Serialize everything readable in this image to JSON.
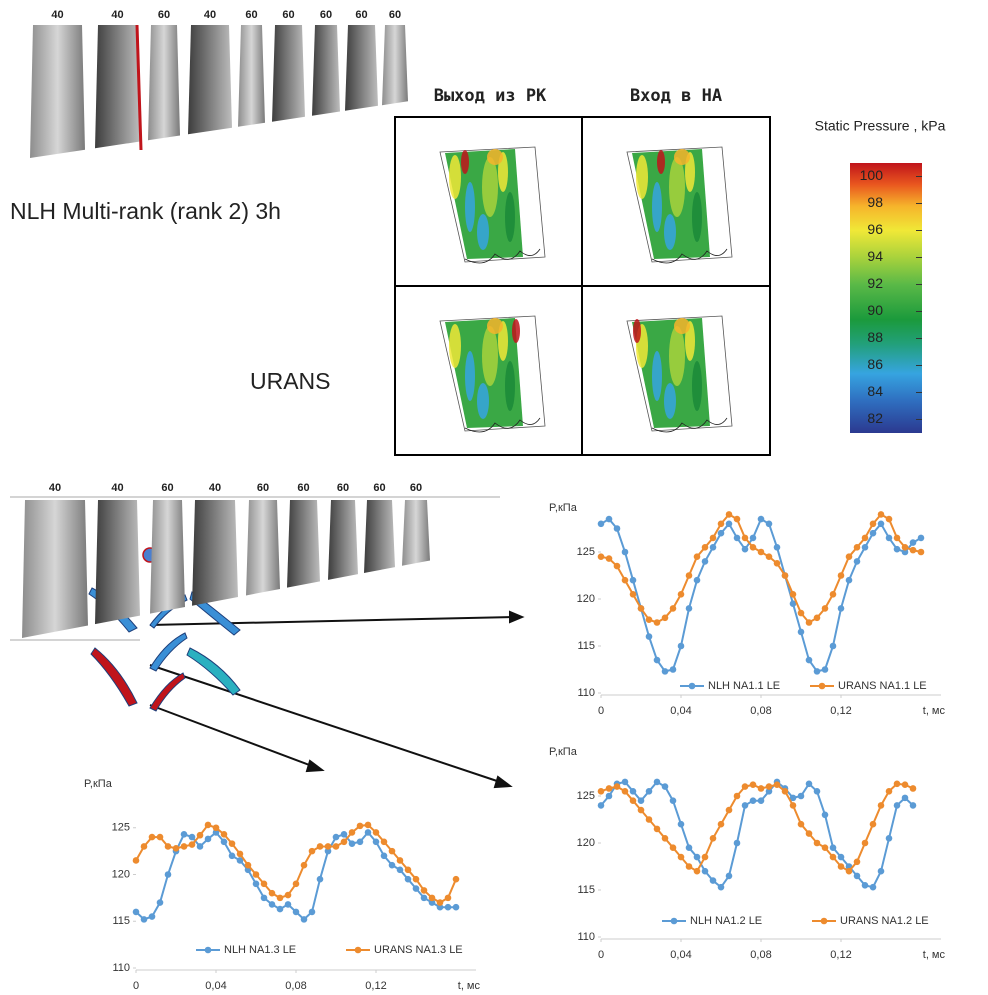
{
  "blades_top": {
    "labels": [
      "40",
      "40",
      "60",
      "40",
      "60",
      "60",
      "60",
      "60",
      "60"
    ]
  },
  "blades_bottom": {
    "labels": [
      "40",
      "40",
      "60",
      "40",
      "60",
      "60",
      "60",
      "60",
      "60"
    ]
  },
  "contours": {
    "column_titles": [
      "Выход из РК",
      "Вход в НА"
    ],
    "row_titles": [
      "NLH Multi-rank (rank 2) 3h",
      "URANS"
    ]
  },
  "colorbar": {
    "title": "Static Pressure , kPa",
    "range": [
      81,
      101
    ],
    "ticks": [
      82,
      84,
      86,
      88,
      90,
      92,
      94,
      96,
      98,
      100
    ]
  },
  "chart_data": [
    {
      "type": "line",
      "y_label": "P,кПа",
      "x_label": "t, мс",
      "legend": "bottom",
      "grid": false,
      "xlim": [
        0,
        0.17
      ],
      "ylim": [
        110,
        130
      ],
      "xticks": [
        0,
        {
          "value": 0.04,
          "label": "0,04"
        },
        {
          "value": 0.08,
          "label": "0,08"
        },
        {
          "value": 0.12,
          "label": "0,12"
        }
      ],
      "yticks": [
        110,
        115,
        120,
        125
      ],
      "x": [
        0,
        0.004,
        0.008,
        0.012,
        0.016,
        0.02,
        0.024,
        0.028,
        0.032,
        0.036,
        0.04,
        0.044,
        0.048,
        0.052,
        0.056,
        0.06,
        0.064,
        0.068,
        0.072,
        0.076,
        0.08,
        0.084,
        0.088,
        0.092,
        0.096,
        0.1,
        0.104,
        0.108,
        0.112,
        0.116,
        0.12,
        0.124,
        0.128,
        0.132,
        0.136,
        0.14,
        0.144,
        0.148,
        0.152,
        0.156,
        0.16
      ],
      "series": [
        {
          "name": "NLH NA1.1 LE",
          "color": "#5b9bd5",
          "values": [
            128,
            128.5,
            127.5,
            125,
            122,
            119,
            116,
            113.5,
            112.3,
            112.5,
            115,
            119,
            122,
            124,
            125.5,
            127,
            128,
            126.5,
            125.3,
            126.5,
            128.5,
            128,
            125.5,
            122.5,
            119.5,
            116.5,
            113.5,
            112.3,
            112.5,
            115,
            119,
            122,
            124,
            125.5,
            127,
            128,
            126.5,
            125.3,
            125,
            126,
            126.5
          ]
        },
        {
          "name": "URANS NA1.1 LE",
          "color": "#ed8b2e",
          "values": [
            124.5,
            124.3,
            123.5,
            122,
            120.5,
            119,
            117.8,
            117.5,
            118,
            119,
            120.5,
            122.5,
            124.5,
            125.5,
            126.5,
            128,
            129,
            128.5,
            126.5,
            125.5,
            125,
            124.5,
            123.8,
            122.5,
            120.5,
            118.5,
            117.5,
            118,
            119,
            120.5,
            122.5,
            124.5,
            125.5,
            126.5,
            128,
            129,
            128.5,
            126.5,
            125.5,
            125.2,
            125
          ]
        }
      ]
    },
    {
      "type": "line",
      "y_label": "P,кПа",
      "x_label": "t, мс",
      "legend": "bottom",
      "grid": false,
      "xlim": [
        0,
        0.17
      ],
      "ylim": [
        110,
        130
      ],
      "xticks": [
        0,
        {
          "value": 0.04,
          "label": "0,04"
        },
        {
          "value": 0.08,
          "label": "0,08"
        },
        {
          "value": 0.12,
          "label": "0,12"
        }
      ],
      "yticks": [
        110,
        115,
        120,
        125
      ],
      "x": [
        0,
        0.004,
        0.008,
        0.012,
        0.016,
        0.02,
        0.024,
        0.028,
        0.032,
        0.036,
        0.04,
        0.044,
        0.048,
        0.052,
        0.056,
        0.06,
        0.064,
        0.068,
        0.072,
        0.076,
        0.08,
        0.084,
        0.088,
        0.092,
        0.096,
        0.1,
        0.104,
        0.108,
        0.112,
        0.116,
        0.12,
        0.124,
        0.128,
        0.132,
        0.136,
        0.14,
        0.144,
        0.148,
        0.152,
        0.156
      ],
      "series": [
        {
          "name": "NLH NA1.2 LE",
          "color": "#5b9bd5",
          "values": [
            124,
            125,
            126.3,
            126.5,
            125.5,
            124.5,
            125.5,
            126.5,
            126,
            124.5,
            122,
            119.5,
            118.5,
            117,
            116,
            115.3,
            116.5,
            120,
            124,
            124.5,
            124.5,
            125.5,
            126.5,
            125.8,
            124.8,
            125,
            126.3,
            125.5,
            123,
            119.5,
            118.5,
            117.5,
            116.5,
            115.5,
            115.3,
            117,
            120.5,
            124,
            124.8,
            124
          ]
        },
        {
          "name": "URANS NA1.2 LE",
          "color": "#ed8b2e",
          "values": [
            125.5,
            125.8,
            126,
            125.5,
            124.5,
            123.5,
            122.5,
            121.5,
            120.5,
            119.5,
            118.5,
            117.5,
            117,
            118.5,
            120.5,
            122,
            123.5,
            125,
            126,
            126.2,
            125.8,
            126,
            126.2,
            125.5,
            124,
            122,
            121,
            120,
            119.5,
            118.5,
            117.5,
            117,
            118,
            120,
            122,
            124,
            125.5,
            126.3,
            126.2,
            125.8
          ]
        }
      ]
    },
    {
      "type": "line",
      "y_label": "P,кПа",
      "x_label": "t, мс",
      "legend": "bottom",
      "grid": false,
      "xlim": [
        0,
        0.17
      ],
      "ylim": [
        110,
        130
      ],
      "xticks": [
        0,
        {
          "value": 0.04,
          "label": "0,04"
        },
        {
          "value": 0.08,
          "label": "0,08"
        },
        {
          "value": 0.12,
          "label": "0,12"
        }
      ],
      "yticks": [
        110,
        115,
        120,
        125
      ],
      "x": [
        0,
        0.004,
        0.008,
        0.012,
        0.016,
        0.02,
        0.024,
        0.028,
        0.032,
        0.036,
        0.04,
        0.044,
        0.048,
        0.052,
        0.056,
        0.06,
        0.064,
        0.068,
        0.072,
        0.076,
        0.08,
        0.084,
        0.088,
        0.092,
        0.096,
        0.1,
        0.104,
        0.108,
        0.112,
        0.116,
        0.12,
        0.124,
        0.128,
        0.132,
        0.136,
        0.14,
        0.144,
        0.148,
        0.152,
        0.156,
        0.16
      ],
      "series": [
        {
          "name": "NLH NA1.3 LE",
          "color": "#5b9bd5",
          "values": [
            116,
            115.2,
            115.5,
            117,
            120,
            122.5,
            124.3,
            124,
            123,
            123.8,
            124.5,
            123.5,
            122,
            121.5,
            120.5,
            119,
            117.5,
            116.8,
            116.3,
            116.8,
            116,
            115.2,
            116,
            119.5,
            122.5,
            124,
            124.3,
            123.3,
            123.5,
            124.5,
            123.5,
            122,
            121,
            120.5,
            119.5,
            118.5,
            117.5,
            117,
            116.5,
            116.5,
            116.5
          ]
        },
        {
          "name": "URANS NA1.3 LE",
          "color": "#ed8b2e",
          "values": [
            121.5,
            123,
            124,
            124,
            123,
            122.8,
            123,
            123.2,
            124.2,
            125.3,
            125,
            124.3,
            123.3,
            122.2,
            121,
            120,
            119,
            118,
            117.5,
            117.8,
            119,
            121,
            122.5,
            123,
            123,
            123,
            123.5,
            124.5,
            125.2,
            125.3,
            124.5,
            123.5,
            122.5,
            121.5,
            120.5,
            119.5,
            118.3,
            117.5,
            117,
            117.5,
            119.5
          ]
        }
      ]
    }
  ]
}
